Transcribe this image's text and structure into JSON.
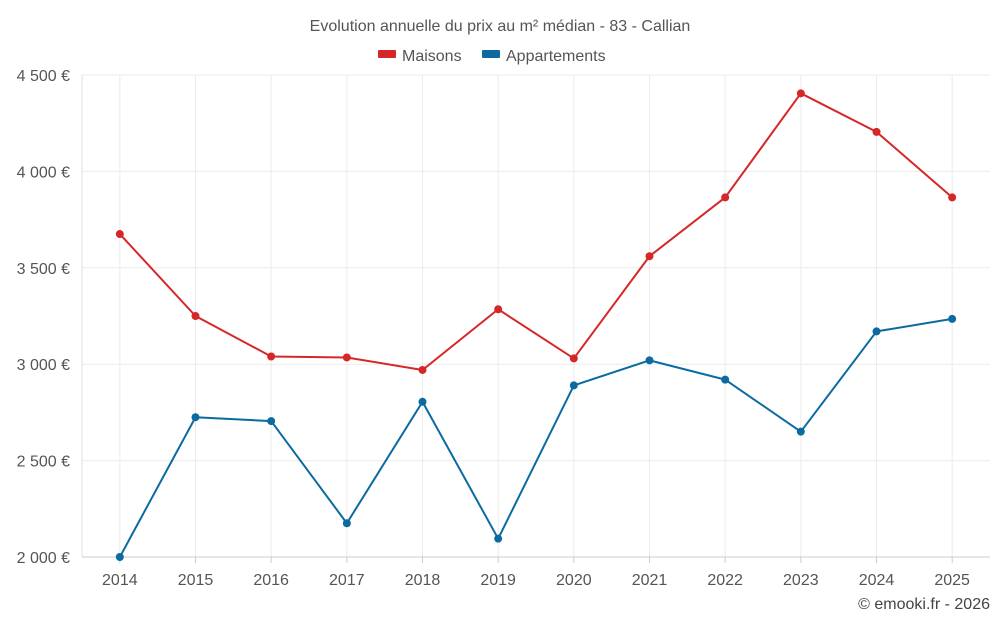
{
  "chart_data": {
    "type": "line",
    "title": "Evolution annuelle du prix au m² médian - 83 - Callian",
    "categories": [
      "2014",
      "2015",
      "2016",
      "2017",
      "2018",
      "2019",
      "2020",
      "2021",
      "2022",
      "2023",
      "2024",
      "2025"
    ],
    "ylim": [
      2000,
      4500
    ],
    "yticks": [
      2000,
      2500,
      3000,
      3500,
      4000,
      4500
    ],
    "ytick_labels": [
      "2 000 €",
      "2 500 €",
      "3 000 €",
      "3 500 €",
      "4 000 €",
      "4 500 €"
    ],
    "series": [
      {
        "name": "Maisons",
        "color": "#d62728",
        "values": [
          3675,
          3250,
          3040,
          3035,
          2970,
          3285,
          3030,
          3560,
          3865,
          4405,
          4205,
          3865
        ]
      },
      {
        "name": "Appartements",
        "color": "#0b6ba0",
        "values": [
          2000,
          2725,
          2705,
          2175,
          2805,
          2095,
          2890,
          3020,
          2920,
          2650,
          3170,
          3235
        ]
      }
    ],
    "legend_position": "top-center",
    "grid": true
  },
  "credit": "© emooki.fr - 2026"
}
